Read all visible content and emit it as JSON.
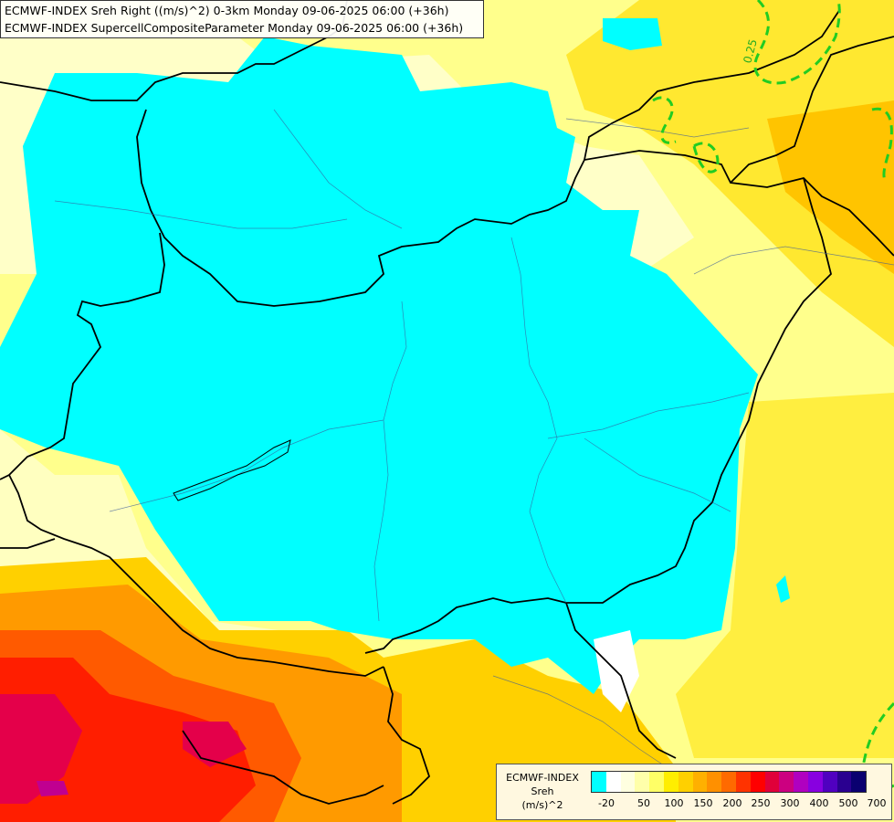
{
  "title": {
    "line1": "ECMWF-INDEX Sreh Right ((m/s)^2) 0-3km Monday 09-06-2025 06:00 (+36h)",
    "line2": "ECMWF-INDEX SupercellCompositeParameter Monday 09-06-2025 06:00 (+36h)"
  },
  "contour_label": "0.25",
  "legend": {
    "label_lines": [
      "ECMWF-INDEX",
      "Sreh",
      "(m/s)^2"
    ],
    "ticks": [
      "-20",
      "50",
      "100",
      "150",
      "200",
      "250",
      "300",
      "400",
      "500",
      "700"
    ],
    "colors": [
      "#00ffff",
      "#ffffff",
      "#ffffe0",
      "#ffffaa",
      "#ffff66",
      "#ffee00",
      "#ffd000",
      "#ffb000",
      "#ff9000",
      "#ff6a00",
      "#ff3300",
      "#ff0000",
      "#e0003a",
      "#cc0080",
      "#b000c0",
      "#8800e0",
      "#5000c0",
      "#2a0090",
      "#0a0070"
    ]
  }
}
